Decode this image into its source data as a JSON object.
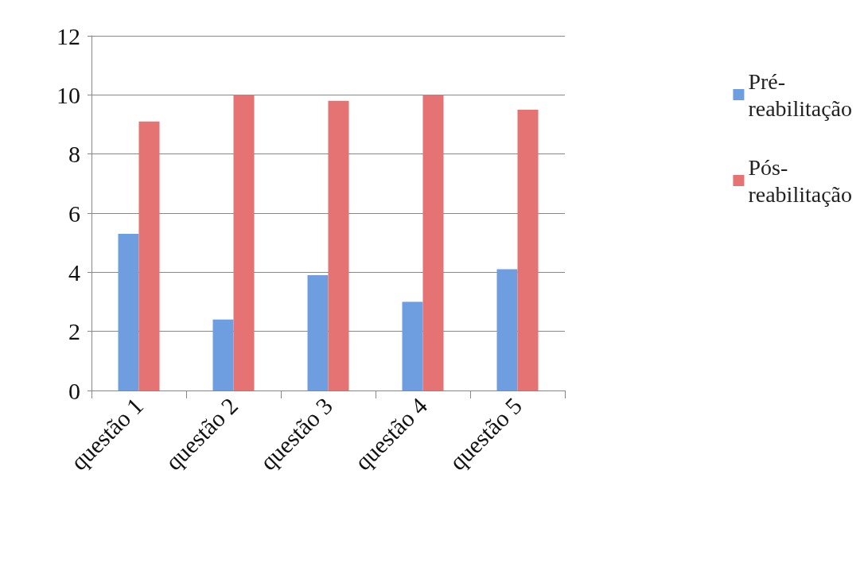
{
  "chart_data": {
    "type": "bar",
    "categories": [
      "questão 1",
      "questão 2",
      "questão 3",
      "questão 4",
      "questão 5"
    ],
    "series": [
      {
        "name": "Pré-reabilitação",
        "color": "#6f9ee0",
        "values": [
          5.3,
          2.4,
          3.9,
          3.0,
          4.1
        ]
      },
      {
        "name": "Pós-reabilitação",
        "color": "#e57373",
        "values": [
          9.1,
          10,
          9.8,
          10,
          9.5
        ]
      }
    ],
    "ylim": [
      0,
      12
    ],
    "yticks": [
      0,
      2,
      4,
      6,
      8,
      10,
      12
    ],
    "grid": "y",
    "legend": "right"
  }
}
